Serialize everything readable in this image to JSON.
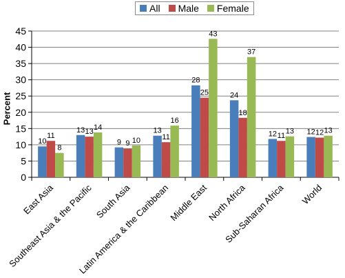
{
  "chart_data": {
    "type": "bar",
    "categories": [
      "East Asia",
      "Southeast Asia & the Pacific",
      "South Asia",
      "Latin America & the Caribbean",
      "Middle East",
      "North Africa",
      "Sub-Saharan Africa",
      "World"
    ],
    "series": [
      {
        "name": "All",
        "color": "#4a7ebb",
        "values": [
          9.5,
          13.0,
          9.2,
          12.8,
          28.3,
          23.7,
          11.8,
          12.4
        ],
        "labels": [
          "10",
          "13",
          "9",
          "13",
          "28",
          "24",
          "12",
          "12"
        ]
      },
      {
        "name": "Male",
        "color": "#be4b48",
        "values": [
          11.2,
          12.5,
          8.9,
          10.8,
          24.5,
          18.3,
          11.2,
          12.2
        ],
        "labels": [
          "11",
          "13",
          "9",
          "11",
          "25",
          "18",
          "11",
          "12"
        ]
      },
      {
        "name": "Female",
        "color": "#98b954",
        "values": [
          7.5,
          13.8,
          9.8,
          15.9,
          42.6,
          37.0,
          12.6,
          12.8
        ],
        "labels": [
          "8",
          "14",
          "10",
          "16",
          "43",
          "37",
          "13",
          "13"
        ]
      }
    ],
    "ylabel": "Percent",
    "ylim": [
      0,
      45
    ],
    "yticks": [
      0,
      5,
      10,
      15,
      20,
      25,
      30,
      35,
      40,
      45
    ],
    "grid": true,
    "legend": "top"
  }
}
